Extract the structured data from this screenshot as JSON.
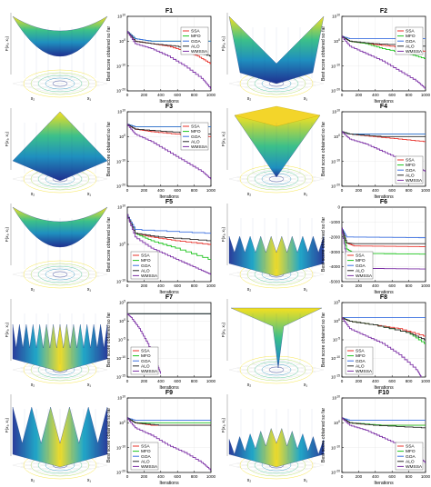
{
  "figure": {
    "surface_axis_labels": {
      "x1": "x₁",
      "x2": "x₂",
      "z": "F(x₁, x₂)"
    },
    "series_colors": {
      "SSA": "#e8312a",
      "MFO": "#1ec41e",
      "GOA": "#3a6fe0",
      "ALO": "#2b2b2b",
      "WMSSA": "#7b2fa5"
    }
  },
  "chart_data": [
    {
      "id": "F1",
      "type": "line",
      "title": "F1",
      "xlabel": "Iterations",
      "ylabel": "Best score obtained so far",
      "yscale": "log",
      "xlim": [
        0,
        1000
      ],
      "ylim": [
        1e-20,
        10000000000.0
      ],
      "xticks": [
        "0",
        "200",
        "400",
        "600",
        "800",
        "1000"
      ],
      "yticks": [
        "10^-20",
        "10^-10",
        "10^0",
        "10^10"
      ],
      "legend": "top-right",
      "series": [
        {
          "name": "SSA",
          "x": [
            0,
            100,
            300,
            500,
            700,
            850,
            1000
          ],
          "y": [
            10000.0,
            1.0,
            0.1,
            0.01,
            0.0001,
            1e-06,
            1e-09
          ]
        },
        {
          "name": "MFO",
          "x": [
            0,
            100,
            300,
            1000
          ],
          "y": [
            10000.0,
            10.0,
            1.0,
            1.0
          ]
        },
        {
          "name": "GOA",
          "x": [
            0,
            100,
            300,
            1000
          ],
          "y": [
            10000.0,
            10.0,
            1.0,
            1.0
          ]
        },
        {
          "name": "ALO",
          "x": [
            0,
            100,
            300,
            600,
            800,
            1000
          ],
          "y": [
            10000.0,
            1.0,
            0.1,
            0.01,
            0.0001,
            1e-06
          ]
        },
        {
          "name": "WMSSA",
          "x": [
            0,
            100,
            300,
            500,
            700,
            900,
            1000
          ],
          "y": [
            10000.0,
            0.1,
            0.001,
            1e-06,
            1e-10,
            1e-15,
            1e-19
          ]
        }
      ]
    },
    {
      "id": "F2",
      "type": "line",
      "title": "F2",
      "xlabel": "Iterations",
      "ylabel": "Best score obtained so far",
      "yscale": "log",
      "xlim": [
        0,
        1000
      ],
      "ylim": [
        1e-20,
        10000000000.0
      ],
      "xticks": [
        "0",
        "200",
        "400",
        "600",
        "800",
        "1000"
      ],
      "yticks": [
        "10^-20",
        "10^-10",
        "10^0",
        "10^10"
      ],
      "legend": "top-right",
      "series": [
        {
          "name": "SSA",
          "x": [
            0,
            100,
            300,
            600,
            1000
          ],
          "y": [
            100.0,
            1.0,
            0.1,
            0.01,
            0.0001
          ]
        },
        {
          "name": "MFO",
          "x": [
            0,
            100,
            300,
            500,
            800,
            1000
          ],
          "y": [
            100.0,
            1.0,
            0.1,
            0.001,
            1e-05,
            1e-07
          ]
        },
        {
          "name": "GOA",
          "x": [
            0,
            100,
            1000
          ],
          "y": [
            100.0,
            10.0,
            10.0
          ]
        },
        {
          "name": "ALO",
          "x": [
            0,
            100,
            400,
            1000
          ],
          "y": [
            100.0,
            1.0,
            0.1,
            0.01
          ]
        },
        {
          "name": "WMSSA",
          "x": [
            0,
            100,
            300,
            500,
            700,
            900,
            1000
          ],
          "y": [
            100.0,
            0.01,
            1e-05,
            1e-08,
            1e-12,
            1e-16,
            1e-19
          ]
        }
      ]
    },
    {
      "id": "F3",
      "type": "line",
      "title": "F3",
      "xlabel": "Iterations",
      "ylabel": "Best score obtained so far",
      "yscale": "log",
      "xlim": [
        0,
        1000
      ],
      "ylim": [
        1e-20,
        10000000000.0
      ],
      "xticks": [
        "0",
        "200",
        "400",
        "600",
        "800",
        "1000"
      ],
      "yticks": [
        "10^-20",
        "10^-10",
        "10^0",
        "10^10"
      ],
      "legend": "top-right",
      "series": [
        {
          "name": "SSA",
          "x": [
            0,
            100,
            300,
            600,
            1000
          ],
          "y": [
            100000.0,
            1000.0,
            100.0,
            10.0,
            1.0
          ]
        },
        {
          "name": "MFO",
          "x": [
            0,
            100,
            1000
          ],
          "y": [
            100000.0,
            10000.0,
            10000.0
          ]
        },
        {
          "name": "GOA",
          "x": [
            0,
            100,
            1000
          ],
          "y": [
            100000.0,
            10000.0,
            10000.0
          ]
        },
        {
          "name": "ALO",
          "x": [
            0,
            100,
            500,
            1000
          ],
          "y": [
            100000.0,
            1000.0,
            100.0,
            10.0
          ]
        },
        {
          "name": "WMSSA",
          "x": [
            0,
            100,
            300,
            500,
            700,
            900,
            1000
          ],
          "y": [
            100000.0,
            10.0,
            0.01,
            1e-06,
            1e-10,
            1e-14,
            1e-17
          ]
        }
      ]
    },
    {
      "id": "F4",
      "type": "line",
      "title": "F4",
      "xlabel": "Iterations",
      "ylabel": "Best score obtained so far",
      "yscale": "log",
      "xlim": [
        0,
        1000
      ],
      "ylim": [
        1e-20,
        10000000000.0
      ],
      "xticks": [
        "0",
        "200",
        "400",
        "600",
        "800",
        "1000"
      ],
      "yticks": [
        "10^-20",
        "10^-10",
        "10^0",
        "10^10"
      ],
      "legend": "bottom-right",
      "series": [
        {
          "name": "SSA",
          "x": [
            0,
            100,
            400,
            700,
            1000
          ],
          "y": [
            100.0,
            10.0,
            1.0,
            0.1,
            0.01
          ]
        },
        {
          "name": "MFO",
          "x": [
            0,
            100,
            1000
          ],
          "y": [
            100.0,
            10.0,
            10.0
          ]
        },
        {
          "name": "GOA",
          "x": [
            0,
            100,
            1000
          ],
          "y": [
            100.0,
            10.0,
            10.0
          ]
        },
        {
          "name": "ALO",
          "x": [
            0,
            100,
            500,
            1000
          ],
          "y": [
            100.0,
            10.0,
            1.0,
            1.0
          ]
        },
        {
          "name": "WMSSA",
          "x": [
            0,
            100,
            300,
            500,
            700,
            900,
            1000
          ],
          "y": [
            100.0,
            0.1,
            0.001,
            1e-06,
            1e-09,
            1e-12,
            1e-14
          ]
        }
      ]
    },
    {
      "id": "F5",
      "type": "line",
      "title": "F5",
      "xlabel": "Iterations",
      "ylabel": "Best score obtained so far",
      "yscale": "log",
      "xlim": [
        0,
        1000
      ],
      "ylim": [
        1e-10,
        10000000000.0
      ],
      "xticks": [
        "0",
        "200",
        "400",
        "600",
        "800",
        "1000"
      ],
      "yticks": [
        "10^-10",
        "10^0",
        "10^10"
      ],
      "legend": "bottom-left",
      "series": [
        {
          "name": "SSA",
          "x": [
            0,
            100,
            300,
            600,
            1000
          ],
          "y": [
            100000000.0,
            1000.0,
            100.0,
            10.0,
            1.0
          ]
        },
        {
          "name": "MFO",
          "x": [
            0,
            100,
            300,
            600,
            1000
          ],
          "y": [
            100000000.0,
            1000.0,
            10.0,
            0.1,
            0.0001
          ]
        },
        {
          "name": "GOA",
          "x": [
            0,
            100,
            1000
          ],
          "y": [
            100000000.0,
            10000.0,
            1000.0
          ]
        },
        {
          "name": "ALO",
          "x": [
            0,
            100,
            400,
            1000
          ],
          "y": [
            100000000.0,
            1000.0,
            100.0,
            10.0
          ]
        },
        {
          "name": "WMSSA",
          "x": [
            0,
            100,
            300,
            500,
            700,
            900,
            1000
          ],
          "y": [
            100000000.0,
            100.0,
            0.1,
            0.001,
            1e-05,
            1e-07,
            1e-08
          ]
        }
      ]
    },
    {
      "id": "F6",
      "type": "line",
      "title": "F6",
      "xlabel": "Iterations",
      "ylabel": "Best score obtained so far",
      "yscale": "linear",
      "xlim": [
        0,
        1000
      ],
      "ylim": [
        -5000,
        0
      ],
      "xticks": [
        "0",
        "200",
        "400",
        "600",
        "800",
        "1000"
      ],
      "yticks": [
        "-5000",
        "-4000",
        "-3000",
        "-2000",
        "-1000",
        "0"
      ],
      "legend": "bottom-left",
      "series": [
        {
          "name": "SSA",
          "x": [
            0,
            60,
            150,
            1000
          ],
          "y": [
            -1400,
            -2400,
            -2600,
            -2650
          ]
        },
        {
          "name": "MFO",
          "x": [
            0,
            60,
            150,
            1000
          ],
          "y": [
            -1400,
            -2800,
            -3100,
            -3150
          ]
        },
        {
          "name": "GOA",
          "x": [
            0,
            60,
            1000
          ],
          "y": [
            -1400,
            -2000,
            -2050
          ]
        },
        {
          "name": "ALO",
          "x": [
            0,
            60,
            150,
            1000
          ],
          "y": [
            -1400,
            -2400,
            -2450,
            -2450
          ]
        },
        {
          "name": "WMSSA",
          "x": [
            0,
            60,
            150,
            1000
          ],
          "y": [
            -1400,
            -3500,
            -4100,
            -4150
          ]
        }
      ]
    },
    {
      "id": "F7",
      "type": "line",
      "title": "F7",
      "xlabel": "Iterations",
      "ylabel": "Best score obtained so far",
      "yscale": "log",
      "xlim": [
        0,
        1000
      ],
      "ylim": [
        1e-15,
        100000.0
      ],
      "xticks": [
        "0",
        "200",
        "400",
        "600",
        "800",
        "1000"
      ],
      "yticks": [
        "10^-15",
        "10^-10",
        "10^-5",
        "10^0",
        "10^5"
      ],
      "legend": "bottom-left",
      "series": [
        {
          "name": "SSA",
          "x": [
            0,
            100,
            1000
          ],
          "y": [
            100.0,
            100.0,
            100.0
          ]
        },
        {
          "name": "MFO",
          "x": [
            0,
            100,
            1000
          ],
          "y": [
            100.0,
            100.0,
            100.0
          ]
        },
        {
          "name": "GOA",
          "x": [
            0,
            100,
            1000
          ],
          "y": [
            100.0,
            100.0,
            100.0
          ]
        },
        {
          "name": "ALO",
          "x": [
            0,
            100,
            1000
          ],
          "y": [
            100.0,
            100.0,
            100.0
          ]
        },
        {
          "name": "WMSSA",
          "x": [
            0,
            50,
            150,
            250,
            350,
            400
          ],
          "y": [
            100.0,
            10.0,
            0.01,
            1e-06,
            1e-11,
            1e-14
          ]
        }
      ]
    },
    {
      "id": "F8",
      "type": "line",
      "title": "F8",
      "xlabel": "Iterations",
      "ylabel": "Best score obtained so far",
      "yscale": "log",
      "xlim": [
        0,
        1000
      ],
      "ylim": [
        1e-15,
        100000.0
      ],
      "xticks": [
        "0",
        "200",
        "400",
        "600",
        "800",
        "1000"
      ],
      "yticks": [
        "10^-15",
        "10^-10",
        "10^-5",
        "10^0",
        "10^5"
      ],
      "legend": "bottom-left",
      "series": [
        {
          "name": "SSA",
          "x": [
            0,
            100,
            400,
            700,
            1000
          ],
          "y": [
            10.0,
            1.0,
            0.1,
            0.01,
            0.0001
          ]
        },
        {
          "name": "MFO",
          "x": [
            0,
            100,
            400,
            800,
            1000
          ],
          "y": [
            10.0,
            1.0,
            0.1,
            0.001,
            1e-06
          ]
        },
        {
          "name": "GOA",
          "x": [
            0,
            100,
            1000
          ],
          "y": [
            10.0,
            10.0,
            10.0
          ]
        },
        {
          "name": "ALO",
          "x": [
            0,
            100,
            400,
            800,
            1000
          ],
          "y": [
            10.0,
            1.0,
            0.1,
            0.001,
            1e-05
          ]
        },
        {
          "name": "WMSSA",
          "x": [
            0,
            100,
            300,
            500,
            700,
            900,
            950
          ],
          "y": [
            10.0,
            0.01,
            0.0001,
            1e-06,
            1e-09,
            1e-13,
            1e-15
          ]
        }
      ]
    },
    {
      "id": "F9",
      "type": "line",
      "title": "F9",
      "xlabel": "Iterations",
      "ylabel": "Best score obtained so far",
      "yscale": "log",
      "xlim": [
        0,
        1000
      ],
      "ylim": [
        1e-20,
        10000000000.0
      ],
      "xticks": [
        "0",
        "200",
        "400",
        "600",
        "800",
        "1000"
      ],
      "yticks": [
        "10^-20",
        "10^-10",
        "10^0",
        "10^10"
      ],
      "legend": "bottom-left",
      "series": [
        {
          "name": "SSA",
          "x": [
            0,
            100,
            300,
            600,
            1000
          ],
          "y": [
            100.0,
            1.0,
            0.1,
            0.1,
            0.1
          ]
        },
        {
          "name": "MFO",
          "x": [
            0,
            100,
            300,
            1000
          ],
          "y": [
            100.0,
            1.0,
            1.0,
            1.0
          ]
        },
        {
          "name": "GOA",
          "x": [
            0,
            100,
            1000
          ],
          "y": [
            100.0,
            10.0,
            10.0
          ]
        },
        {
          "name": "ALO",
          "x": [
            0,
            100,
            400,
            1000
          ],
          "y": [
            100.0,
            1.0,
            0.1,
            0.1
          ]
        },
        {
          "name": "WMSSA",
          "x": [
            0,
            100,
            300,
            500,
            700,
            900,
            1000
          ],
          "y": [
            100.0,
            0.01,
            1e-05,
            1e-09,
            1e-12,
            1e-16,
            1e-19
          ]
        }
      ]
    },
    {
      "id": "F10",
      "type": "line",
      "title": "F10",
      "xlabel": "Iterations",
      "ylabel": "Best score obtained so far",
      "yscale": "log",
      "xlim": [
        0,
        1000
      ],
      "ylim": [
        1e-20,
        10000000000.0
      ],
      "xticks": [
        "0",
        "200",
        "400",
        "600",
        "800",
        "1000"
      ],
      "yticks": [
        "10^-20",
        "10^-10",
        "10^0",
        "10^10"
      ],
      "legend": "bottom-right",
      "series": [
        {
          "name": "SSA",
          "x": [
            0,
            100,
            400,
            1000
          ],
          "y": [
            100.0,
            1.0,
            0.1,
            0.1
          ]
        },
        {
          "name": "MFO",
          "x": [
            0,
            100,
            500,
            1000
          ],
          "y": [
            100.0,
            1.0,
            0.1,
            0.1
          ]
        },
        {
          "name": "GOA",
          "x": [
            0,
            100,
            1000
          ],
          "y": [
            100.0,
            10.0,
            10.0
          ]
        },
        {
          "name": "ALO",
          "x": [
            0,
            100,
            400,
            1000
          ],
          "y": [
            100.0,
            1.0,
            0.1,
            0.01
          ]
        },
        {
          "name": "WMSSA",
          "x": [
            0,
            100,
            300,
            500,
            700,
            900,
            1000
          ],
          "y": [
            100.0,
            0.1,
            0.001,
            1e-06,
            1e-09,
            1e-13,
            1e-16
          ]
        }
      ]
    }
  ]
}
